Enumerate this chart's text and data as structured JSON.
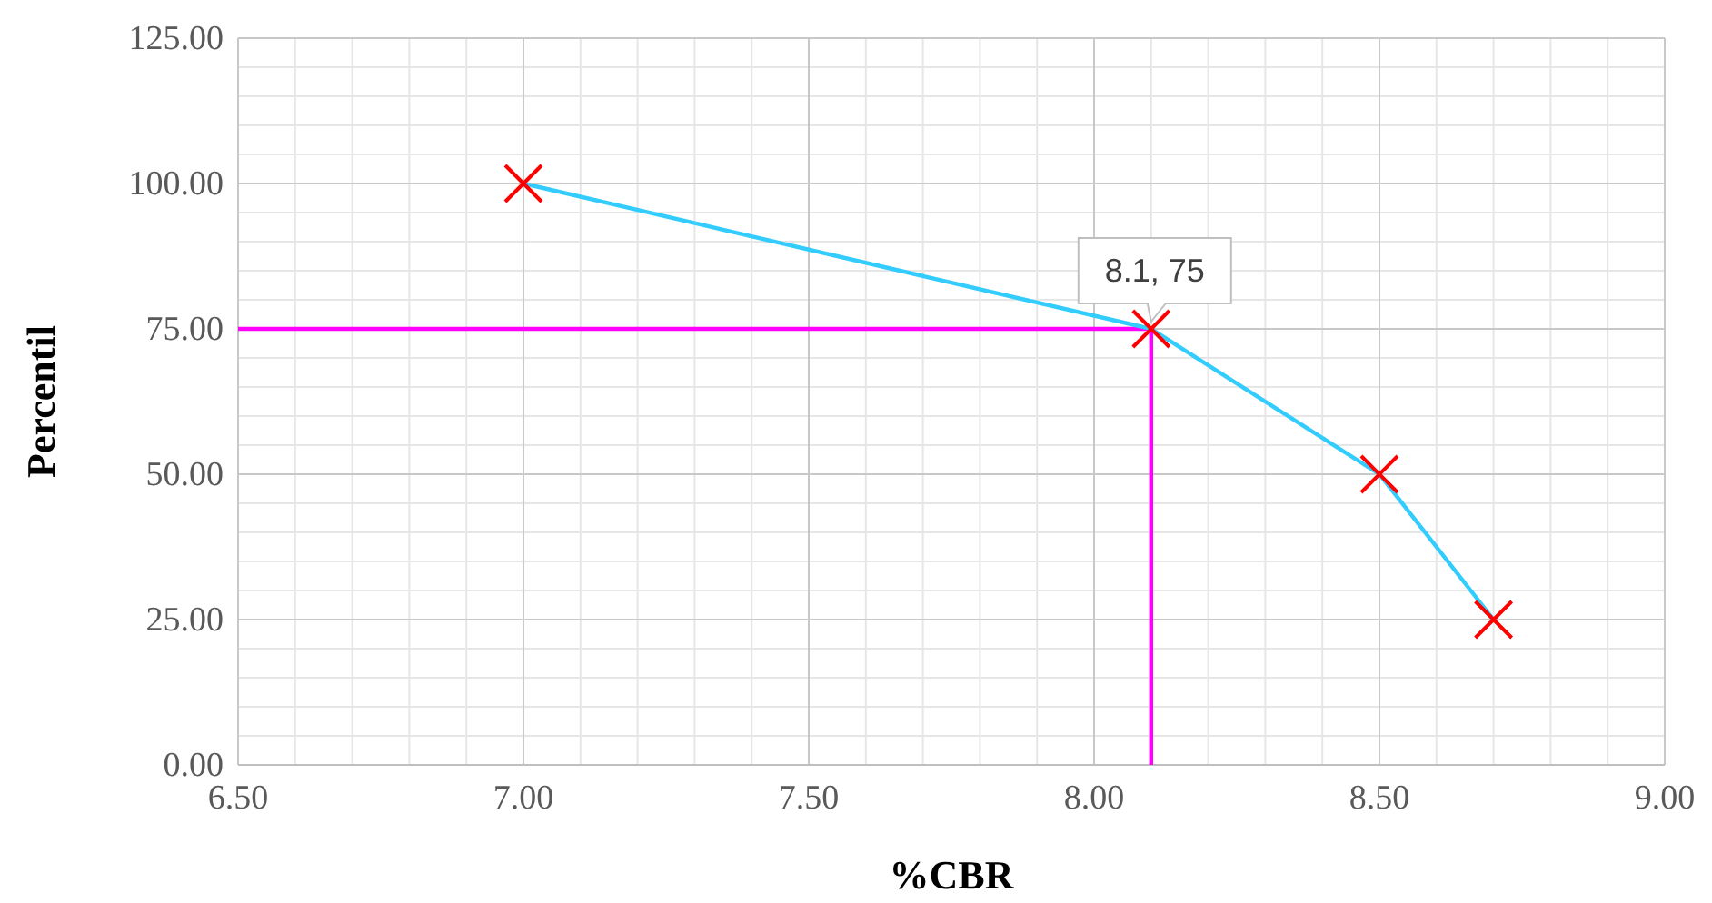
{
  "chart_data": {
    "type": "line",
    "xlabel": "%CBR",
    "ylabel": "Percentil",
    "xlim": [
      6.5,
      9
    ],
    "ylim": [
      0,
      125
    ],
    "xticks": [
      {
        "value": 6.5,
        "label": "6.50"
      },
      {
        "value": 7,
        "label": "7.00"
      },
      {
        "value": 7.5,
        "label": "7.50"
      },
      {
        "value": 8,
        "label": "8.00"
      },
      {
        "value": 8.5,
        "label": "8.50"
      },
      {
        "value": 9,
        "label": "9.00"
      }
    ],
    "yticks": [
      {
        "value": 0,
        "label": "0.00"
      },
      {
        "value": 25,
        "label": "25.00"
      },
      {
        "value": 50,
        "label": "50.00"
      },
      {
        "value": 75,
        "label": "75.00"
      },
      {
        "value": 100,
        "label": "100.00"
      },
      {
        "value": 125,
        "label": "125.00"
      }
    ],
    "grid": true,
    "series": [
      {
        "color": "#ff00ff",
        "x": [
          6.5,
          8.1,
          8.1
        ],
        "values": [
          75,
          75,
          0
        ],
        "marker": "none"
      },
      {
        "color": "#33ccff",
        "x": [
          7,
          8.1,
          8.5,
          8.7
        ],
        "values": [
          100,
          75,
          50,
          25
        ],
        "marker": "none"
      },
      {
        "type": "scatter",
        "color": "#ff0000",
        "x": [
          7,
          8.1,
          8.5,
          8.7
        ],
        "values": [
          100,
          75,
          50,
          25
        ],
        "marker": "cross"
      }
    ],
    "annotations": [
      {
        "text": "8.1, 75",
        "x": 8.1,
        "y": 75
      }
    ]
  }
}
